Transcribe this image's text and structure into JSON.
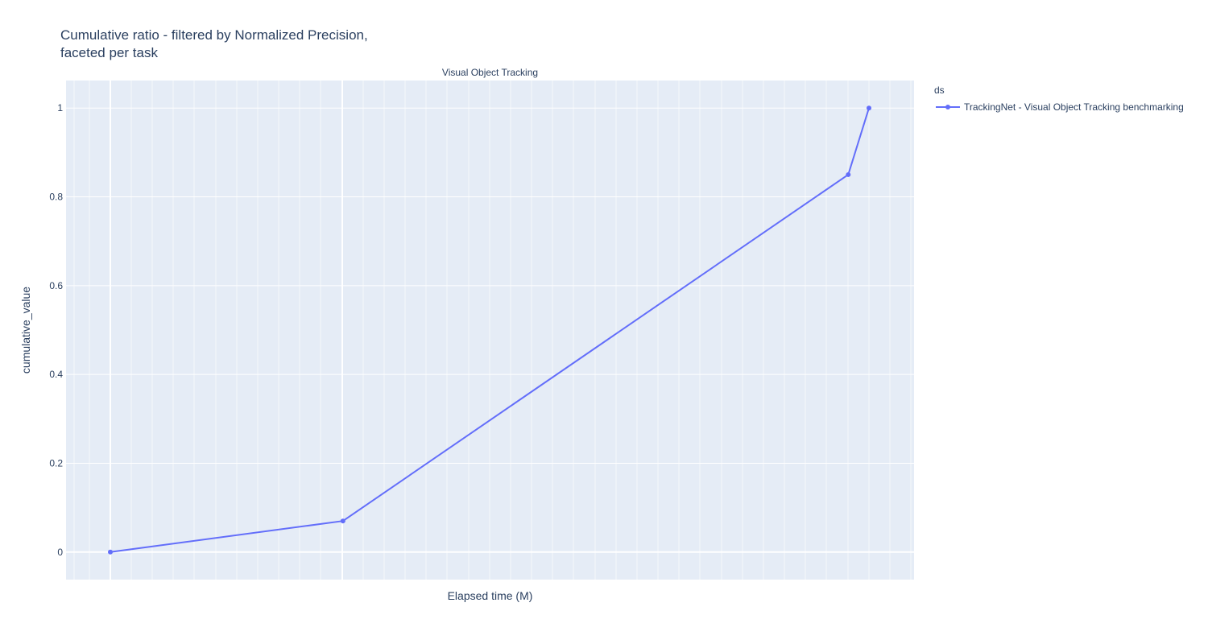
{
  "chart_data": {
    "type": "line",
    "title": "Cumulative ratio - filtered by Normalized Precision,\nfaceted per task",
    "subplot_title": "Visual Object Tracking",
    "xlabel": "Elapsed time (M)",
    "ylabel": "cumulative_value",
    "x_tick_labels_shown": false,
    "ylim": [
      -0.062,
      1.062
    ],
    "y_ticks": [
      0,
      0.2,
      0.4,
      0.6,
      0.8,
      1
    ],
    "y_tick_labels": [
      "0",
      "0.2",
      "0.4",
      "0.6",
      "0.8",
      "1"
    ],
    "grid": true,
    "legend": {
      "title": "ds",
      "placement": "top-right"
    },
    "series": [
      {
        "name": "TrackingNet - Visual Object Tracking benchmarking",
        "color": "#636efa",
        "mode": "lines+markers",
        "x_relative": [
          0.0,
          0.3066,
          0.9727,
          1.0
        ],
        "y": [
          0,
          0.07,
          0.85,
          1.0
        ]
      }
    ]
  },
  "colors": {
    "plot_background": "#e5ecf6",
    "grid": "#ffffff",
    "text": "#2a3f5f"
  }
}
